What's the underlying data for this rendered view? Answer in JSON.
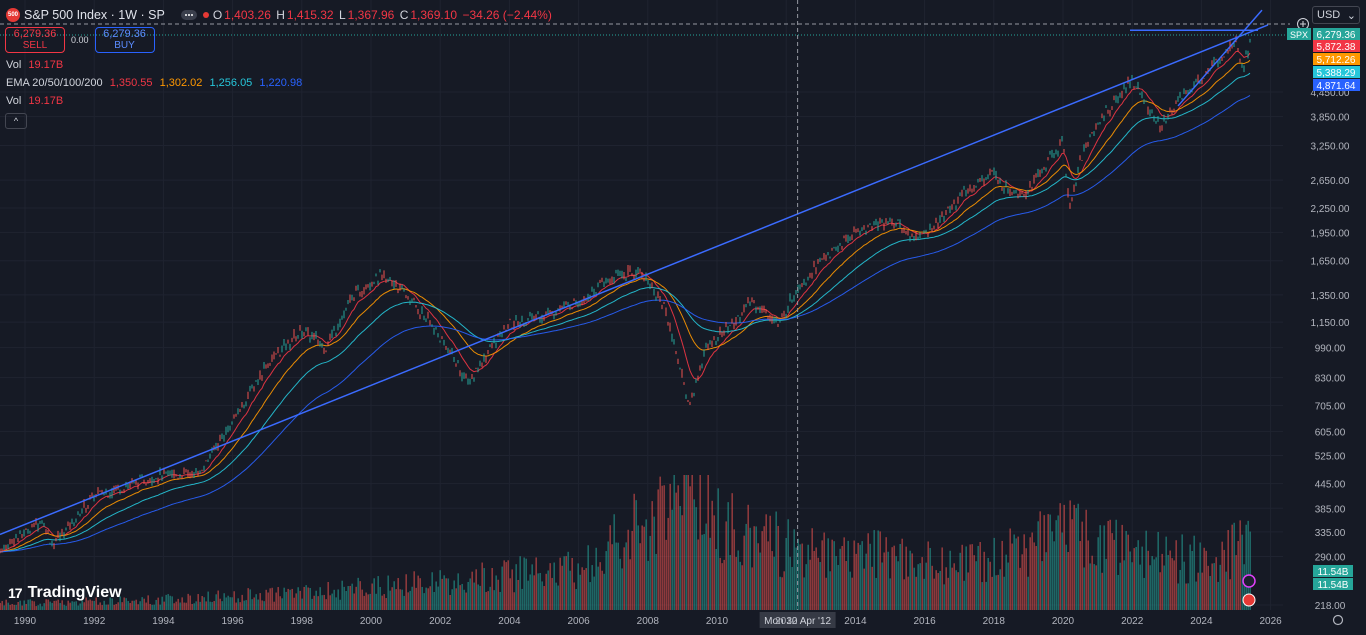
{
  "header": {
    "logo_text": "500",
    "symbol_title": "S&P 500 Index · 1W · SP",
    "open_key": "O",
    "open": "1,403.26",
    "high_key": "H",
    "high": "1,415.32",
    "low_key": "L",
    "low": "1,367.96",
    "close_key": "C",
    "close": "1,369.10",
    "change": "−34.26 (−2.44%)"
  },
  "trade": {
    "sell_price": "6,279.36",
    "sell_label": "SELL",
    "spread": "0.00",
    "buy_price": "6,279.36",
    "buy_label": "BUY"
  },
  "legend": {
    "vol_label": "Vol",
    "vol_value": "19.17B",
    "ema_label": "EMA 20/50/100/200",
    "ema20": "1,350.55",
    "ema50": "1,302.02",
    "ema100": "1,256.05",
    "ema200": "1,220.98",
    "vol2_label": "Vol",
    "vol2_value": "19.17B",
    "collapse_glyph": "^"
  },
  "currency": {
    "label": "USD",
    "chevron": "⌄"
  },
  "brand": {
    "mark": "17",
    "name": "TradingView"
  },
  "colors": {
    "background": "#161a25",
    "up": "#26a69a",
    "down": "#ef5350",
    "trendline": "#3b6bff",
    "ema20": "#f23645",
    "ema50": "#ff9800",
    "ema100": "#26c6da",
    "ema200": "#2962ff"
  },
  "chart_data": {
    "type": "line",
    "title": "S&P 500 Index · 1W · SP",
    "x_ticks": [
      "1990",
      "1992",
      "1994",
      "1996",
      "1998",
      "2000",
      "2002",
      "2004",
      "2006",
      "2008",
      "2010",
      "2012",
      "2014",
      "2016",
      "2018",
      "2020",
      "2022",
      "2024",
      "2026"
    ],
    "crosshair_date": "Mon 30 Apr '12",
    "y_scale": "log",
    "y_ticks": [
      "4,450.00",
      "3,850.00",
      "3,250.00",
      "2,650.00",
      "2,250.00",
      "1,950.00",
      "1,650.00",
      "1,350.00",
      "1,150.00",
      "990.00",
      "830.00",
      "705.00",
      "605.00",
      "525.00",
      "445.00",
      "385.00",
      "335.00",
      "290.00",
      "218.00"
    ],
    "ylim": [
      218,
      7200
    ],
    "price_tags": [
      {
        "name": "SPX",
        "value": "6,279.36",
        "color": "#26a69a"
      },
      {
        "name": "EMA 20",
        "value": "5,872.38",
        "color": "#f23645"
      },
      {
        "name": "EMA 50",
        "value": "5,712.26",
        "color": "#ff9800"
      },
      {
        "name": "EMA 100",
        "value": "5,388.29",
        "color": "#26c6da"
      },
      {
        "name": "EMA 200",
        "value": "4,871.64",
        "color": "#2962ff"
      }
    ],
    "volume_tags": [
      "11.54B",
      "11.54B"
    ],
    "series": [
      {
        "name": "SPX",
        "x": [
          1989.0,
          1990.5,
          1990.8,
          1992,
          1994,
          1995,
          1996,
          1997,
          1998,
          1998.7,
          1999.5,
          2000.2,
          2000.7,
          2001.7,
          2002.5,
          2002.8,
          2003.5,
          2004,
          2005,
          2006,
          2007,
          2007.8,
          2008.5,
          2009.2,
          2009.7,
          2010.5,
          2011,
          2011.5,
          2011.8,
          2012.3,
          2013,
          2014,
          2015,
          2015.7,
          2016.1,
          2017,
          2018,
          2018.1,
          2018.9,
          2019.5,
          2020.0,
          2020.2,
          2020.5,
          2021,
          2022.0,
          2022.5,
          2022.8,
          2023.5,
          2024,
          2024.5,
          2025.0,
          2025.2,
          2025.5
        ],
        "values": [
          290,
          360,
          310,
          415,
          470,
          470,
          640,
          900,
          1100,
          1000,
          1350,
          1500,
          1450,
          1150,
          900,
          800,
          1000,
          1130,
          1200,
          1300,
          1500,
          1560,
          1250,
          700,
          1000,
          1150,
          1300,
          1200,
          1130,
          1400,
          1650,
          1950,
          2100,
          1900,
          1950,
          2400,
          2800,
          2600,
          2450,
          2900,
          3300,
          2250,
          3000,
          3700,
          4800,
          4000,
          3600,
          4400,
          4800,
          5400,
          6100,
          5100,
          6300
        ]
      },
      {
        "name": "Volume",
        "x": [
          1990,
          1994,
          1998,
          2002,
          2006,
          2008.5,
          2009,
          2010,
          2012,
          2014,
          2016,
          2018,
          2020.2,
          2022,
          2024,
          2025.2
        ],
        "values": [
          1,
          1.5,
          2.5,
          4,
          6,
          14,
          18,
          12,
          9,
          8,
          7,
          7,
          11,
          8,
          7,
          9
        ]
      }
    ]
  }
}
